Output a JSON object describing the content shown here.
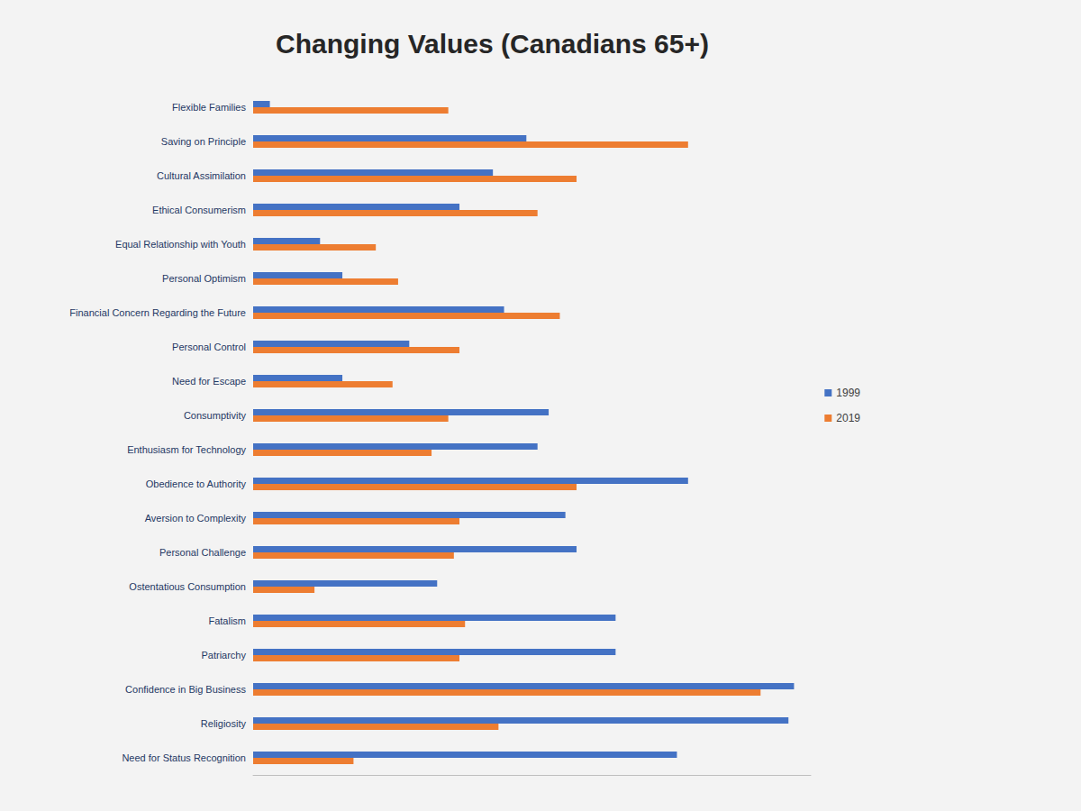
{
  "chart_data": {
    "type": "bar",
    "title": "Changing Values (Canadians 65+)",
    "orientation": "horizontal",
    "categories": [
      "Flexible Families",
      "Saving on Principle",
      "Cultural Assimilation",
      "Ethical Consumerism",
      "Equal Relationship with Youth",
      "Personal Optimism",
      "Financial Concern Regarding the Future",
      "Personal Control",
      "Need for Escape",
      "Consumptivity",
      "Enthusiasm for Technology",
      "Obedience to Authority",
      "Aversion to Complexity",
      "Personal Challenge",
      "Ostentatious Consumption",
      "Fatalism",
      "Patriarchy",
      "Confidence in Big Business",
      "Religiosity",
      "Need for Status Recognition"
    ],
    "series": [
      {
        "name": "1999",
        "color": "#4472c4",
        "values": [
          3,
          49,
          43,
          37,
          12,
          16,
          45,
          28,
          16,
          53,
          51,
          78,
          56,
          58,
          33,
          65,
          65,
          97,
          96,
          76
        ]
      },
      {
        "name": "2019",
        "color": "#ed7d31",
        "values": [
          35,
          78,
          58,
          51,
          22,
          26,
          55,
          37,
          25,
          35,
          32,
          58,
          37,
          36,
          11,
          38,
          37,
          91,
          44,
          18
        ]
      }
    ],
    "xlim": [
      0,
      100
    ],
    "grid": false,
    "legend": "right",
    "tick_labels": "y"
  }
}
